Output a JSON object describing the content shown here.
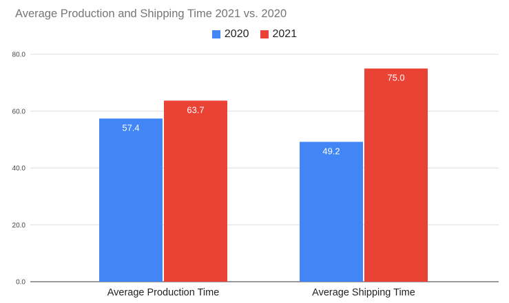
{
  "chart_data": {
    "type": "bar",
    "title": "Average Production and Shipping Time 2021 vs. 2020",
    "xlabel": "",
    "ylabel": "",
    "categories": [
      "Average Production Time",
      "Average Shipping Time"
    ],
    "series": [
      {
        "name": "2020",
        "color": "#4285f4",
        "values": [
          57.4,
          49.2
        ],
        "labels": [
          "57.4",
          "49.2"
        ]
      },
      {
        "name": "2021",
        "color": "#ea4335",
        "values": [
          63.7,
          75.0
        ],
        "labels": [
          "63.7",
          "75.0"
        ]
      }
    ],
    "ylim": [
      0,
      80
    ],
    "yticks": [
      0,
      20,
      40,
      60,
      80
    ],
    "ytick_labels": [
      "0.0",
      "20.0",
      "40.0",
      "60.0",
      "80.0"
    ],
    "grid": true,
    "legend_position": "top-center"
  }
}
